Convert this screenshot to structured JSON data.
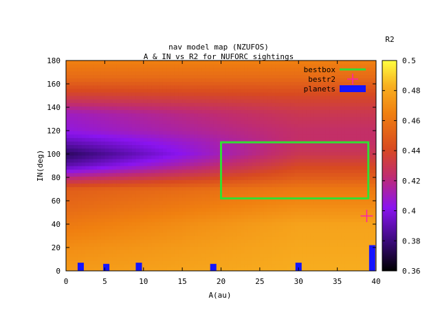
{
  "chart_data": {
    "type": "heatmap",
    "title": "nav model map (NZUFOS)",
    "subtitle": "A & IN vs R2 for NUFORC sightings",
    "xlabel": "A(au)",
    "ylabel": "IN(deg)",
    "colorbar_label": "R2",
    "xlim": [
      0,
      40
    ],
    "ylim": [
      0,
      180
    ],
    "clim": [
      0.36,
      0.5
    ],
    "x_ticks": [
      0,
      5,
      10,
      15,
      20,
      25,
      30,
      35,
      40
    ],
    "y_ticks": [
      0,
      20,
      40,
      60,
      80,
      100,
      120,
      140,
      160,
      180
    ],
    "c_ticks": [
      0.36,
      0.38,
      0.4,
      0.42,
      0.44,
      0.46,
      0.48,
      0.5
    ],
    "grid": false,
    "legend_position": "top-right",
    "legend": [
      {
        "name": "bestbox",
        "color": "#33dd33",
        "style": "line"
      },
      {
        "name": "bestr2",
        "color": "#ff22aa",
        "style": "cross"
      },
      {
        "name": "planets",
        "color": "#1414ff",
        "style": "box"
      }
    ],
    "bestbox": {
      "x": [
        20,
        39
      ],
      "y": [
        62,
        110
      ]
    },
    "bestr2": {
      "x": 38.8,
      "y": 47
    },
    "planets": [
      {
        "x": 1.9,
        "height": 7
      },
      {
        "x": 5.2,
        "height": 6
      },
      {
        "x": 9.4,
        "height": 7
      },
      {
        "x": 19.0,
        "height": 6
      },
      {
        "x": 30.0,
        "height": 7
      },
      {
        "x": 39.5,
        "height": 22
      }
    ],
    "heatmap_profile": {
      "description_values": "approximate R2 by inclination at low and high A",
      "inclination": [
        0,
        20,
        40,
        55,
        70,
        80,
        90,
        100,
        110,
        120,
        135,
        150,
        165,
        180
      ],
      "r2_at_low_A": [
        0.475,
        0.47,
        0.462,
        0.455,
        0.45,
        0.42,
        0.39,
        0.375,
        0.39,
        0.405,
        0.41,
        0.435,
        0.455,
        0.465
      ],
      "r2_at_high_A": [
        0.482,
        0.48,
        0.478,
        0.47,
        0.462,
        0.45,
        0.44,
        0.43,
        0.425,
        0.425,
        0.43,
        0.44,
        0.455,
        0.465
      ]
    }
  }
}
